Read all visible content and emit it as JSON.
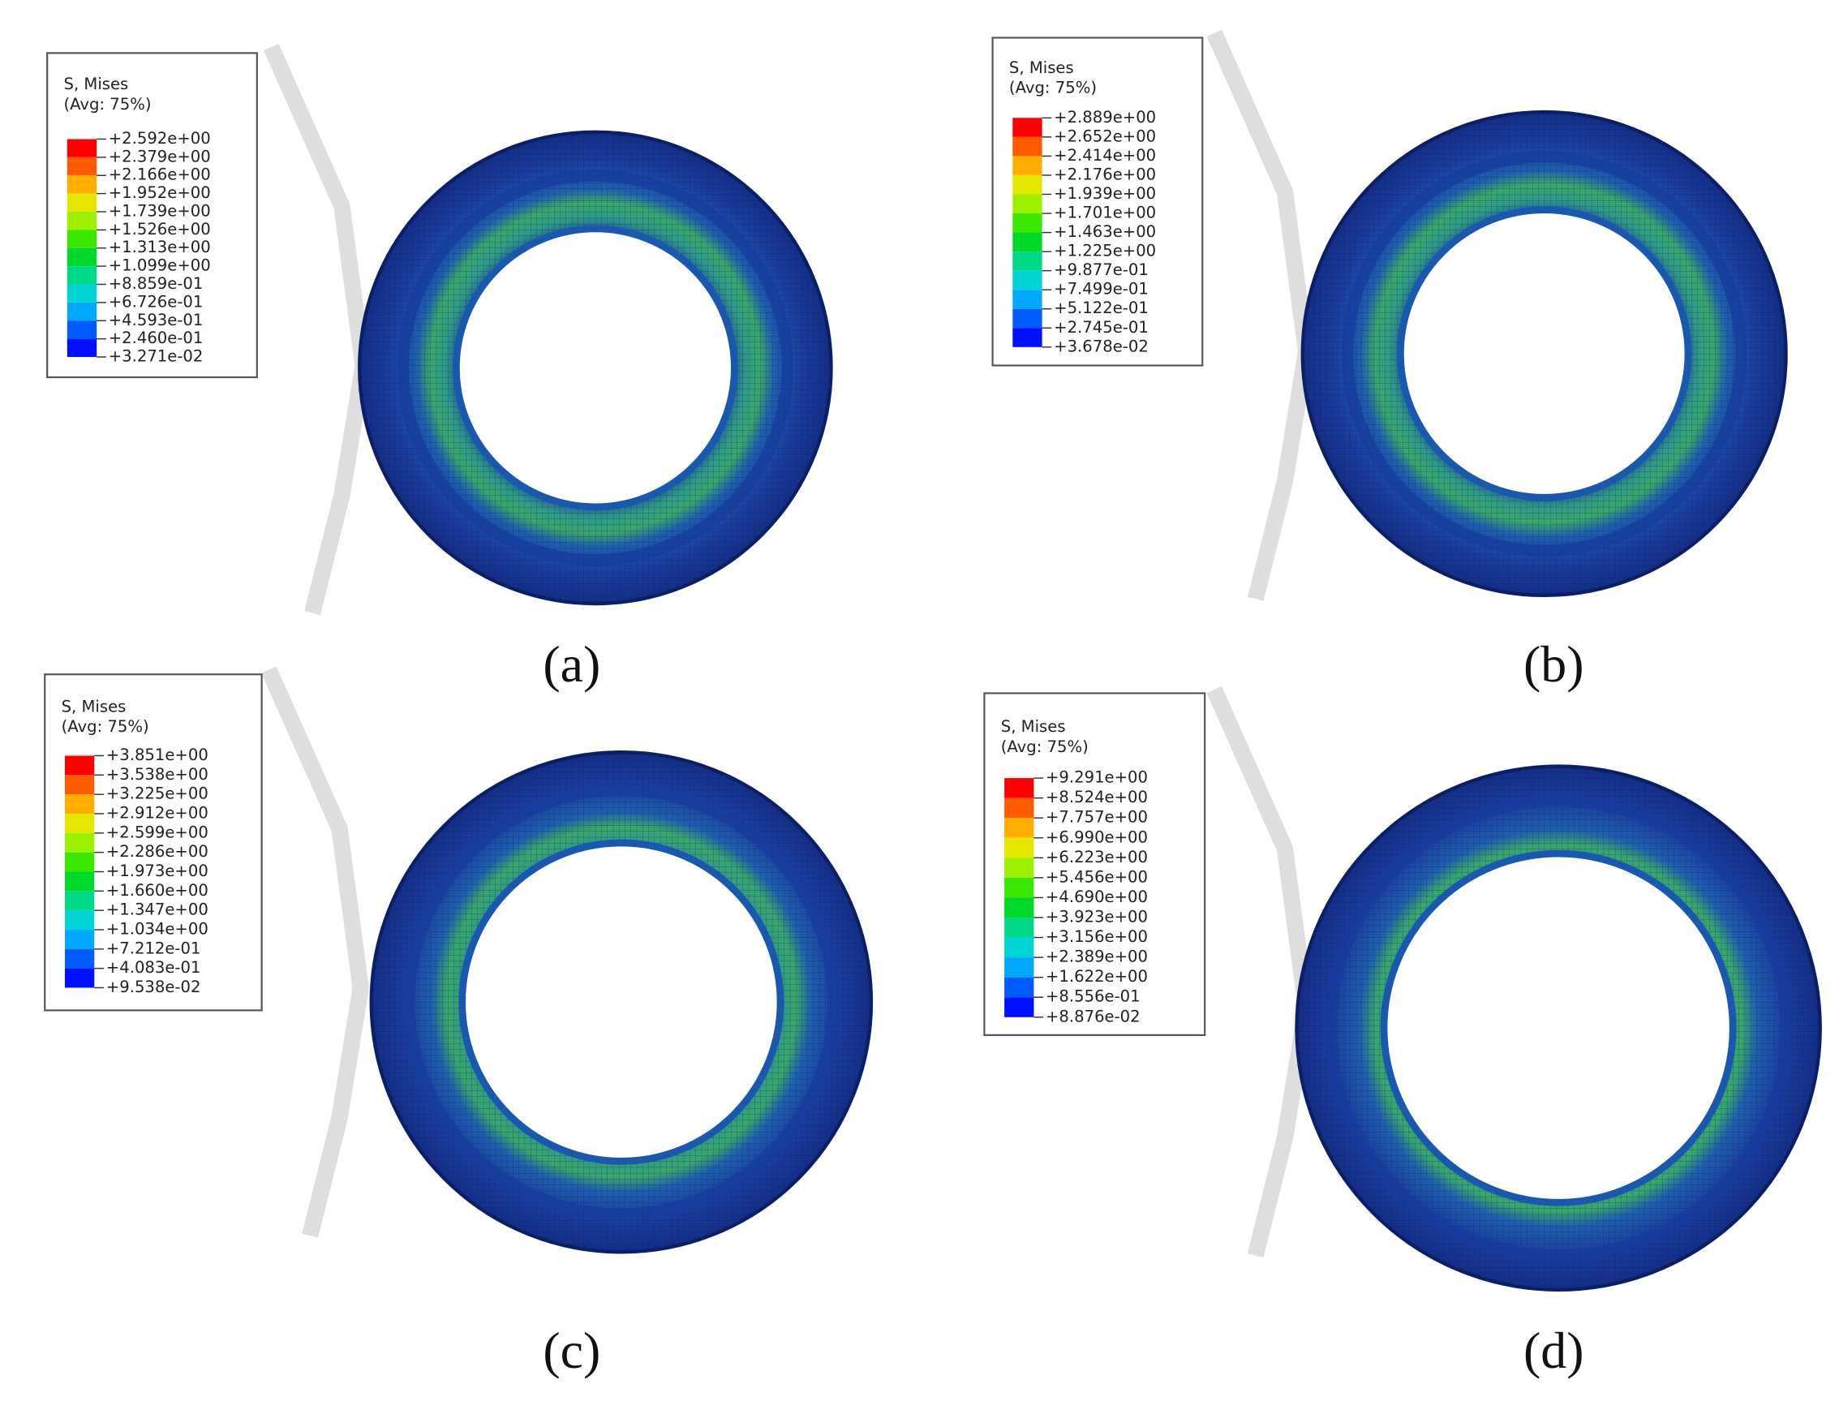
{
  "panels": [
    {
      "legend": {
        "title": "S, Mises",
        "subtitle": "(Avg: 75%)",
        "labels": [
          "+2.592e+00",
          "+2.379e+00",
          "+2.166e+00",
          "+1.952e+00",
          "+1.739e+00",
          "+1.526e+00",
          "+1.313e+00",
          "+1.099e+00",
          "+8.859e-01",
          "+6.726e-01",
          "+4.593e-01",
          "+2.460e-01",
          "+3.271e-02"
        ]
      },
      "caption": "(a)"
    },
    {
      "legend": {
        "title": "S, Mises",
        "subtitle": "(Avg: 75%)",
        "labels": [
          "+2.889e+00",
          "+2.652e+00",
          "+2.414e+00",
          "+2.176e+00",
          "+1.939e+00",
          "+1.701e+00",
          "+1.463e+00",
          "+1.225e+00",
          "+9.877e-01",
          "+7.499e-01",
          "+5.122e-01",
          "+2.745e-01",
          "+3.678e-02"
        ]
      },
      "caption": "(b)"
    },
    {
      "legend": {
        "title": "S, Mises",
        "subtitle": "(Avg: 75%)",
        "labels": [
          "+3.851e+00",
          "+3.538e+00",
          "+3.225e+00",
          "+2.912e+00",
          "+2.599e+00",
          "+2.286e+00",
          "+1.973e+00",
          "+1.660e+00",
          "+1.347e+00",
          "+1.034e+00",
          "+7.212e-01",
          "+4.083e-01",
          "+9.538e-02"
        ]
      },
      "caption": "(c)"
    },
    {
      "legend": {
        "title": "S, Mises",
        "subtitle": "(Avg: 75%)",
        "labels": [
          "+9.291e+00",
          "+8.524e+00",
          "+7.757e+00",
          "+6.990e+00",
          "+6.223e+00",
          "+5.456e+00",
          "+4.690e+00",
          "+3.923e+00",
          "+3.156e+00",
          "+2.389e+00",
          "+1.622e+00",
          "+8.556e-01",
          "+8.876e-02"
        ]
      },
      "caption": "(d)"
    }
  ]
}
